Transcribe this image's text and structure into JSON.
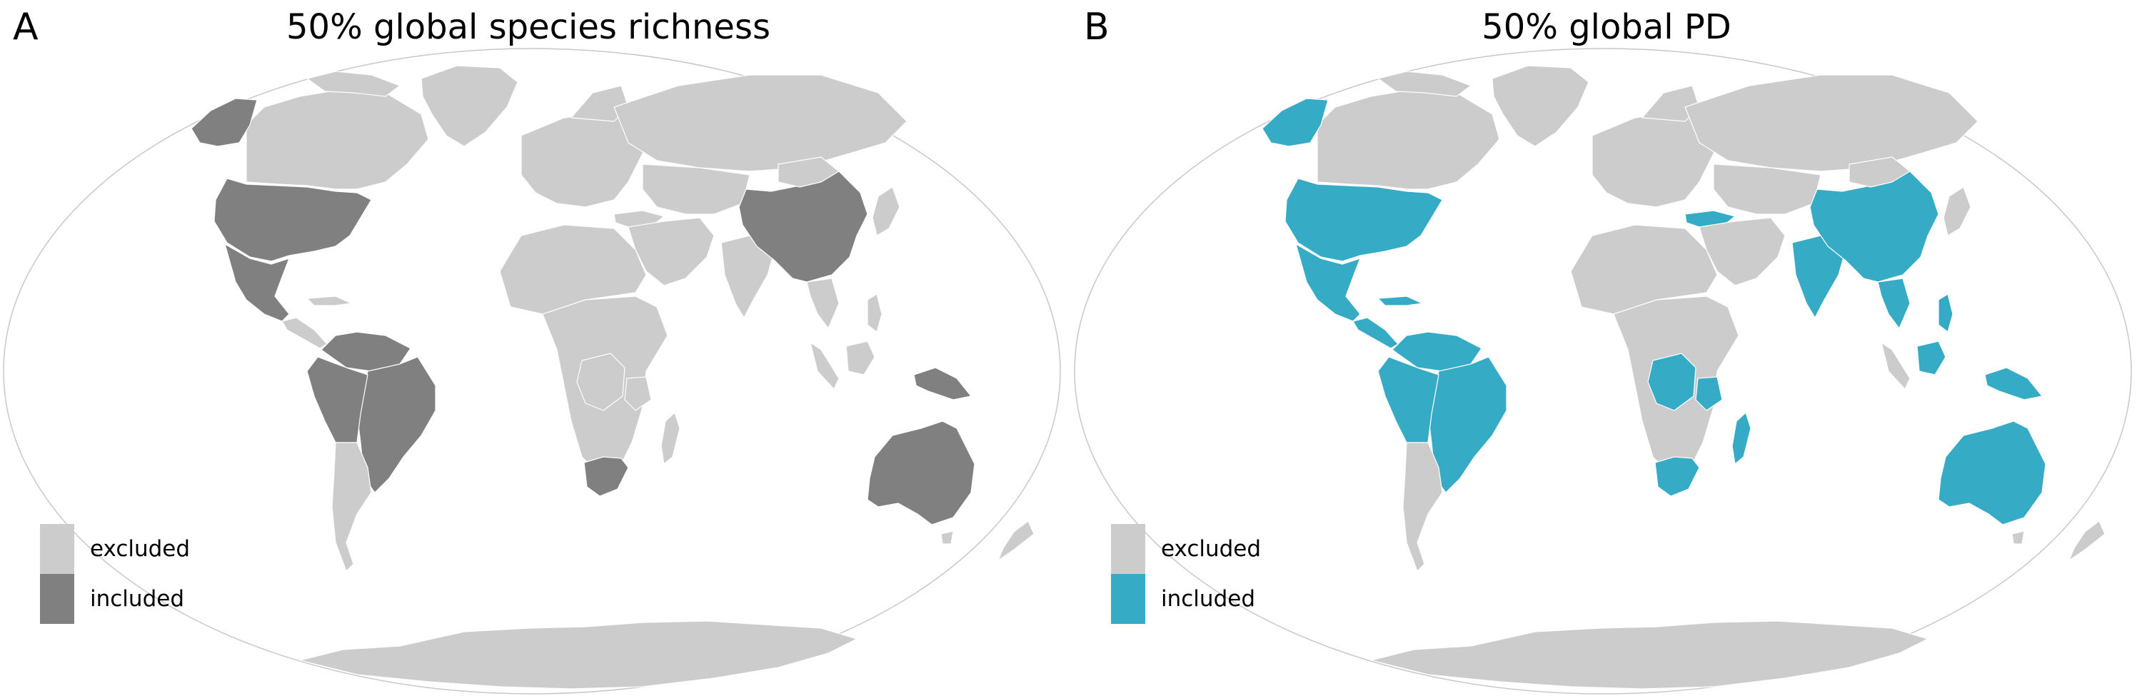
{
  "colors": {
    "excluded": "#cccccc",
    "included_gray": "#808080",
    "included_teal": "#36abc5",
    "border": "#ffffff",
    "outline": "#c8c8c8"
  },
  "panels": [
    {
      "letter": "A",
      "title": "50% global species richness",
      "included_color": "#808080",
      "legend": [
        {
          "label": "excluded",
          "color": "#cccccc"
        },
        {
          "label": "included",
          "color": "#808080"
        }
      ],
      "included_regions": [
        "alaska",
        "usa",
        "mexico",
        "south america north",
        "brazil",
        "peru bolivia",
        "china",
        "south africa",
        "new guinea",
        "australia"
      ]
    },
    {
      "letter": "B",
      "title": "50% global PD",
      "included_color": "#36abc5",
      "legend": [
        {
          "label": "excluded",
          "color": "#cccccc"
        },
        {
          "label": "included",
          "color": "#36abc5"
        }
      ],
      "included_regions": [
        "alaska",
        "usa",
        "mexico",
        "cuba",
        "central america",
        "south america north",
        "brazil",
        "peru bolivia",
        "turkey",
        "china",
        "india",
        "southeast asia",
        "philippines",
        "borneo",
        "new guinea",
        "dr congo",
        "tanzania",
        "south africa",
        "madagascar",
        "australia"
      ]
    }
  ]
}
